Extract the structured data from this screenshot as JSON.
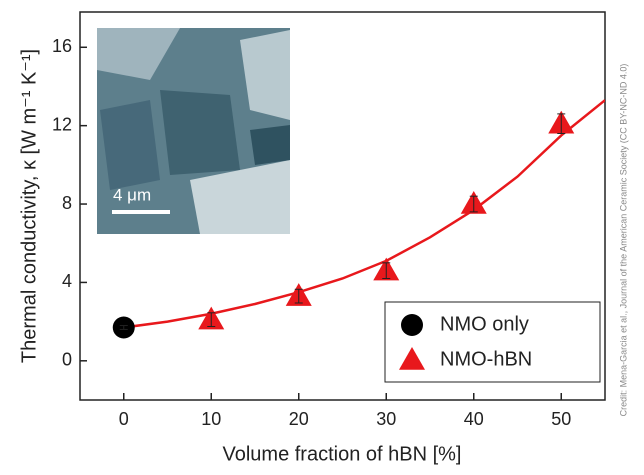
{
  "chart_data": {
    "type": "scatter",
    "xlabel": "Volume fraction of hBN [%]",
    "ylabel": "Thermal conductivity, κ [W m⁻¹ K⁻¹]",
    "xlim": [
      -5,
      55
    ],
    "ylim": [
      -2,
      17.8
    ],
    "xticks": [
      0,
      10,
      20,
      30,
      40,
      50
    ],
    "yticks": [
      0,
      4,
      8,
      12,
      16
    ],
    "legend": "lower right",
    "series": [
      {
        "name": "NMO only",
        "color": "#000000",
        "marker": "circle",
        "x": [
          0
        ],
        "values": [
          1.7
        ],
        "errors": [
          0.1
        ]
      },
      {
        "name": "NMO-hBN",
        "color": "#e8181c",
        "marker": "triangle",
        "x": [
          10,
          20,
          30,
          40,
          50
        ],
        "values": [
          2.1,
          3.3,
          4.6,
          8.0,
          12.1
        ],
        "errors": [
          0.35,
          0.35,
          0.4,
          0.4,
          0.5
        ]
      }
    ],
    "fit_line": {
      "color": "#e8181c",
      "x": [
        0,
        5,
        10,
        15,
        20,
        25,
        30,
        35,
        40,
        45,
        50,
        55
      ],
      "values": [
        1.7,
        2.0,
        2.4,
        2.9,
        3.5,
        4.2,
        5.1,
        6.3,
        7.7,
        9.4,
        11.5,
        13.3
      ]
    },
    "inset": {
      "scale_label": "4 μm"
    },
    "credit": "Credit: Mena-Garcia et al., Journal of the American Ceramic Society (CC BY-NC-ND 4.0)"
  }
}
